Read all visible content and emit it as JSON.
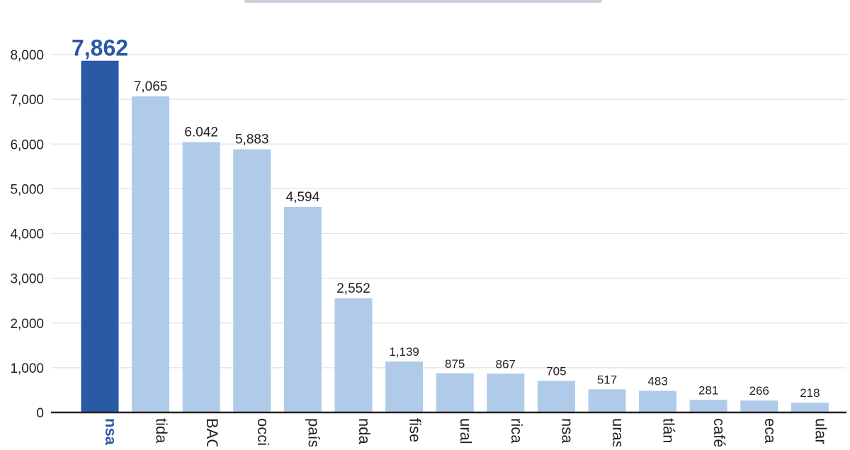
{
  "chart_data": {
    "type": "bar",
    "title": "",
    "xlabel": "",
    "ylabel": "",
    "ylim": [
      0,
      8000
    ],
    "yticks": [
      0,
      1000,
      2000,
      3000,
      4000,
      5000,
      6000,
      7000,
      8000
    ],
    "ytick_labels": [
      "0",
      "1,000",
      "2,000",
      "3,000",
      "4,000",
      "5,000",
      "6,000",
      "7,000",
      "8,000"
    ],
    "grid": true,
    "categories": [
      "nsa",
      "tida",
      "BAC",
      "occi",
      "país",
      "nda",
      "fise",
      "ural",
      "rica",
      "nsa",
      "uras",
      "tlán",
      "café",
      "eca",
      "ular"
    ],
    "values": [
      7862,
      7065,
      6042,
      5883,
      4594,
      2552,
      1139,
      875,
      867,
      705,
      517,
      483,
      281,
      266,
      218
    ],
    "value_labels": [
      "7,862",
      "7,065",
      "6.042",
      "5,883",
      "4,594",
      "2,552",
      "1,139",
      "875",
      "867",
      "705",
      "517",
      "483",
      "281",
      "266",
      "218"
    ],
    "highlight_index": 0,
    "colors": {
      "highlight": "#2a59a6",
      "bar": "#b0cbea",
      "grid": "#e2e2e2",
      "axis": "#222222",
      "text": "#222222"
    }
  }
}
